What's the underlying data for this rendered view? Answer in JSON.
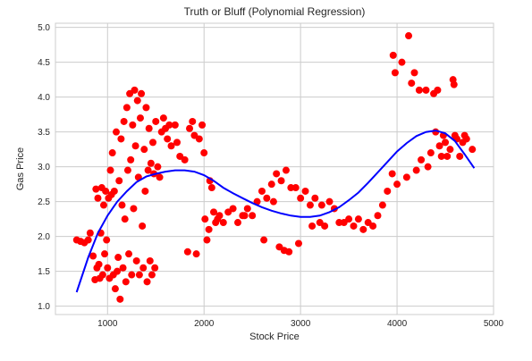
{
  "chart_data": {
    "type": "scatter",
    "title": "Truth or Bluff (Polynomial Regression)",
    "xlabel": "Stock Price",
    "ylabel": "Gas Price",
    "xlim": [
      460,
      5000
    ],
    "ylim": [
      0.88,
      5.06
    ],
    "x_ticks": [
      1000,
      2000,
      3000,
      4000,
      5000
    ],
    "y_ticks": [
      1.0,
      1.5,
      2.0,
      2.5,
      3.0,
      3.5,
      4.0,
      4.5,
      5.0
    ],
    "x_tick_labels": [
      "1000",
      "2000",
      "3000",
      "4000",
      "5000"
    ],
    "y_tick_labels": [
      "1.0",
      "1.5",
      "2.0",
      "2.5",
      "3.0",
      "3.5",
      "4.0",
      "4.5",
      "5.0"
    ],
    "grid": true,
    "background": "#ffffff",
    "grid_color": "#cccccc",
    "series": [
      {
        "kind": "scatter",
        "color": "#ff0000",
        "points": [
          [
            680,
            1.95
          ],
          [
            720,
            1.93
          ],
          [
            760,
            1.91
          ],
          [
            800,
            1.95
          ],
          [
            820,
            2.05
          ],
          [
            850,
            1.72
          ],
          [
            870,
            1.38
          ],
          [
            880,
            2.68
          ],
          [
            890,
            1.55
          ],
          [
            900,
            2.55
          ],
          [
            910,
            1.6
          ],
          [
            920,
            1.4
          ],
          [
            930,
            2.05
          ],
          [
            940,
            2.7
          ],
          [
            950,
            1.45
          ],
          [
            960,
            2.45
          ],
          [
            970,
            1.75
          ],
          [
            980,
            2.65
          ],
          [
            990,
            1.95
          ],
          [
            1000,
            1.55
          ],
          [
            1010,
            2.55
          ],
          [
            1020,
            1.4
          ],
          [
            1030,
            2.95
          ],
          [
            1040,
            2.6
          ],
          [
            1050,
            3.2
          ],
          [
            1060,
            1.45
          ],
          [
            1070,
            2.65
          ],
          [
            1080,
            1.25
          ],
          [
            1090,
            3.5
          ],
          [
            1100,
            1.5
          ],
          [
            1110,
            1.7
          ],
          [
            1120,
            2.8
          ],
          [
            1130,
            1.1
          ],
          [
            1140,
            3.4
          ],
          [
            1150,
            2.45
          ],
          [
            1160,
            1.55
          ],
          [
            1170,
            3.65
          ],
          [
            1180,
            2.25
          ],
          [
            1190,
            1.35
          ],
          [
            1200,
            3.85
          ],
          [
            1210,
            2.95
          ],
          [
            1220,
            1.75
          ],
          [
            1230,
            4.05
          ],
          [
            1240,
            3.1
          ],
          [
            1250,
            1.45
          ],
          [
            1260,
            3.6
          ],
          [
            1270,
            2.4
          ],
          [
            1280,
            4.1
          ],
          [
            1290,
            3.3
          ],
          [
            1300,
            1.65
          ],
          [
            1310,
            3.95
          ],
          [
            1320,
            2.85
          ],
          [
            1330,
            1.45
          ],
          [
            1340,
            3.7
          ],
          [
            1350,
            4.05
          ],
          [
            1360,
            2.15
          ],
          [
            1370,
            1.55
          ],
          [
            1380,
            3.25
          ],
          [
            1390,
            2.65
          ],
          [
            1400,
            3.85
          ],
          [
            1410,
            1.35
          ],
          [
            1420,
            2.95
          ],
          [
            1430,
            3.55
          ],
          [
            1440,
            1.65
          ],
          [
            1450,
            3.05
          ],
          [
            1460,
            1.45
          ],
          [
            1470,
            3.35
          ],
          [
            1480,
            2.9
          ],
          [
            1490,
            1.55
          ],
          [
            1500,
            3.65
          ],
          [
            1520,
            3.0
          ],
          [
            1540,
            2.85
          ],
          [
            1560,
            3.5
          ],
          [
            1580,
            3.7
          ],
          [
            1600,
            3.55
          ],
          [
            1620,
            3.4
          ],
          [
            1640,
            3.6
          ],
          [
            1660,
            3.3
          ],
          [
            1700,
            3.6
          ],
          [
            1720,
            3.35
          ],
          [
            1750,
            3.15
          ],
          [
            1800,
            3.1
          ],
          [
            1830,
            1.78
          ],
          [
            1850,
            3.55
          ],
          [
            1880,
            3.65
          ],
          [
            1900,
            3.45
          ],
          [
            1920,
            1.75
          ],
          [
            1950,
            3.4
          ],
          [
            1980,
            3.6
          ],
          [
            2000,
            3.2
          ],
          [
            2010,
            2.25
          ],
          [
            2030,
            1.95
          ],
          [
            2050,
            2.1
          ],
          [
            2060,
            2.8
          ],
          [
            2080,
            2.7
          ],
          [
            2100,
            2.35
          ],
          [
            2120,
            2.2
          ],
          [
            2140,
            2.25
          ],
          [
            2160,
            2.3
          ],
          [
            2200,
            2.2
          ],
          [
            2250,
            2.35
          ],
          [
            2300,
            2.4
          ],
          [
            2350,
            2.2
          ],
          [
            2400,
            2.3
          ],
          [
            2420,
            2.3
          ],
          [
            2450,
            2.4
          ],
          [
            2500,
            2.3
          ],
          [
            2550,
            2.5
          ],
          [
            2600,
            2.65
          ],
          [
            2620,
            1.95
          ],
          [
            2650,
            2.55
          ],
          [
            2700,
            2.75
          ],
          [
            2720,
            2.5
          ],
          [
            2750,
            2.9
          ],
          [
            2780,
            1.85
          ],
          [
            2800,
            2.8
          ],
          [
            2830,
            1.8
          ],
          [
            2850,
            2.95
          ],
          [
            2880,
            1.78
          ],
          [
            2900,
            2.7
          ],
          [
            2950,
            2.7
          ],
          [
            2980,
            1.9
          ],
          [
            3000,
            2.55
          ],
          [
            3050,
            2.65
          ],
          [
            3100,
            2.45
          ],
          [
            3120,
            2.15
          ],
          [
            3150,
            2.55
          ],
          [
            3200,
            2.2
          ],
          [
            3220,
            2.45
          ],
          [
            3250,
            2.15
          ],
          [
            3300,
            2.5
          ],
          [
            3350,
            2.4
          ],
          [
            3400,
            2.2
          ],
          [
            3450,
            2.2
          ],
          [
            3500,
            2.25
          ],
          [
            3550,
            2.15
          ],
          [
            3600,
            2.25
          ],
          [
            3650,
            2.1
          ],
          [
            3700,
            2.2
          ],
          [
            3750,
            2.15
          ],
          [
            3800,
            2.3
          ],
          [
            3850,
            2.45
          ],
          [
            3900,
            2.65
          ],
          [
            3950,
            2.9
          ],
          [
            3960,
            4.6
          ],
          [
            3980,
            4.35
          ],
          [
            4000,
            2.75
          ],
          [
            4050,
            4.5
          ],
          [
            4100,
            2.85
          ],
          [
            4120,
            4.88
          ],
          [
            4150,
            4.2
          ],
          [
            4180,
            4.35
          ],
          [
            4200,
            2.95
          ],
          [
            4230,
            4.1
          ],
          [
            4250,
            3.1
          ],
          [
            4300,
            4.1
          ],
          [
            4320,
            3.0
          ],
          [
            4350,
            3.2
          ],
          [
            4380,
            4.05
          ],
          [
            4400,
            3.5
          ],
          [
            4420,
            4.1
          ],
          [
            4440,
            3.3
          ],
          [
            4460,
            3.15
          ],
          [
            4480,
            3.45
          ],
          [
            4500,
            3.35
          ],
          [
            4520,
            3.15
          ],
          [
            4550,
            3.25
          ],
          [
            4580,
            4.25
          ],
          [
            4590,
            4.18
          ],
          [
            4600,
            3.45
          ],
          [
            4620,
            3.4
          ],
          [
            4650,
            3.15
          ],
          [
            4680,
            3.35
          ],
          [
            4700,
            3.45
          ],
          [
            4720,
            3.4
          ],
          [
            4780,
            3.25
          ]
        ]
      },
      {
        "kind": "line",
        "color": "#0000ff",
        "points": [
          [
            680,
            1.2
          ],
          [
            800,
            1.7
          ],
          [
            900,
            2.05
          ],
          [
            1000,
            2.3
          ],
          [
            1100,
            2.5
          ],
          [
            1200,
            2.65
          ],
          [
            1300,
            2.78
          ],
          [
            1400,
            2.86
          ],
          [
            1500,
            2.9
          ],
          [
            1600,
            2.93
          ],
          [
            1700,
            2.95
          ],
          [
            1800,
            2.95
          ],
          [
            1900,
            2.93
          ],
          [
            2000,
            2.88
          ],
          [
            2100,
            2.8
          ],
          [
            2200,
            2.7
          ],
          [
            2300,
            2.62
          ],
          [
            2400,
            2.55
          ],
          [
            2500,
            2.48
          ],
          [
            2600,
            2.42
          ],
          [
            2700,
            2.37
          ],
          [
            2800,
            2.33
          ],
          [
            2900,
            2.3
          ],
          [
            3000,
            2.28
          ],
          [
            3100,
            2.28
          ],
          [
            3200,
            2.3
          ],
          [
            3300,
            2.35
          ],
          [
            3400,
            2.42
          ],
          [
            3500,
            2.52
          ],
          [
            3600,
            2.63
          ],
          [
            3700,
            2.77
          ],
          [
            3800,
            2.92
          ],
          [
            3900,
            3.07
          ],
          [
            4000,
            3.22
          ],
          [
            4100,
            3.34
          ],
          [
            4200,
            3.44
          ],
          [
            4300,
            3.5
          ],
          [
            4400,
            3.52
          ],
          [
            4500,
            3.48
          ],
          [
            4600,
            3.37
          ],
          [
            4700,
            3.18
          ],
          [
            4800,
            2.98
          ]
        ]
      }
    ]
  }
}
